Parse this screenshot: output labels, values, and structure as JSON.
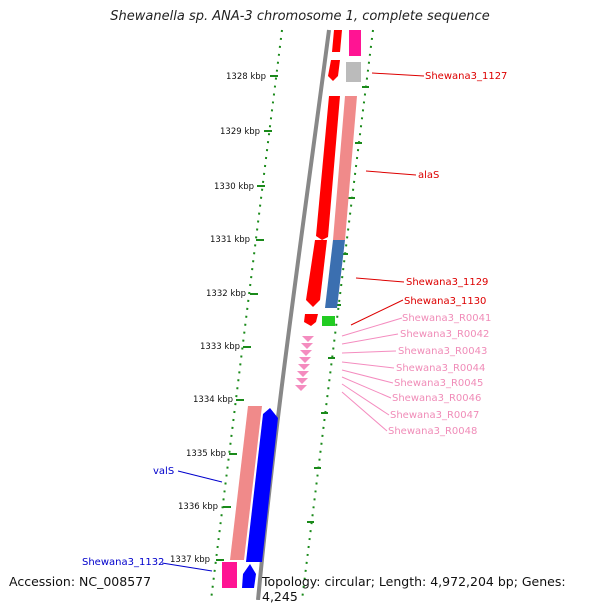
{
  "title": "Shewanella sp. ANA-3 chromosome 1, complete sequence",
  "footer": {
    "accession": "Accession: NC_008577",
    "summary": "Topology: circular; Length: 4,972,204 bp; Genes: 4,245"
  },
  "ticks": [
    "1328 kbp",
    "1329 kbp",
    "1330 kbp",
    "1331 kbp",
    "1332 kbp",
    "1333 kbp",
    "1334 kbp",
    "1335 kbp",
    "1336 kbp",
    "1337 kbp"
  ],
  "colors": {
    "cds": "#ff0000",
    "cds_light": "#f08a8a",
    "rna_pink": "#ff1493",
    "trna_pink": "#f48cbf",
    "blue_cds": "#0000ff",
    "blue_gene": "#3b6fb0",
    "green": "#22cc22",
    "grey": "#bbbbbb",
    "backbone": "#888888",
    "dotted": "#1a8a1a",
    "label_red": "#dd0000",
    "label_pink": "#f08cb8",
    "label_blue": "#0000cc"
  },
  "labels": {
    "shewana3_1127": "Shewana3_1127",
    "alaS": "alaS",
    "shewana3_1129": "Shewana3_1129",
    "shewana3_1130": "Shewana3_1130",
    "r0041": "Shewana3_R0041",
    "r0042": "Shewana3_R0042",
    "r0043": "Shewana3_R0043",
    "r0044": "Shewana3_R0044",
    "r0045": "Shewana3_R0045",
    "r0046": "Shewana3_R0046",
    "r0047": "Shewana3_R0047",
    "r0048": "Shewana3_R0048",
    "valS": "valS",
    "shewana3_1132": "Shewana3_1132"
  }
}
